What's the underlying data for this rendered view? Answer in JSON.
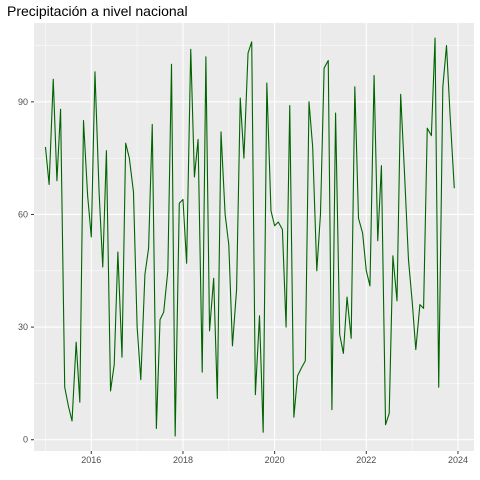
{
  "chart_data": {
    "type": "line",
    "title": "Precipitación a nivel nacional",
    "xlabel": "",
    "ylabel": "",
    "xlim": [
      2014.75,
      2024.35
    ],
    "ylim": [
      -3,
      111
    ],
    "x_ticks": [
      2016,
      2018,
      2020,
      2022,
      2024
    ],
    "y_ticks": [
      0,
      30,
      60,
      90
    ],
    "grid": true,
    "colors": {
      "line": "#006400",
      "panel": "#ebebeb",
      "grid": "#ffffff",
      "tick_text": "#4d4d4d"
    },
    "series": [
      {
        "x": [
          2015.0,
          2015.08,
          2015.17,
          2015.25,
          2015.33,
          2015.42,
          2015.5,
          2015.58,
          2015.67,
          2015.75,
          2015.83,
          2015.92,
          2016.0,
          2016.08,
          2016.17,
          2016.25,
          2016.33,
          2016.42,
          2016.5,
          2016.58,
          2016.67,
          2016.75,
          2016.83,
          2016.92,
          2017.0,
          2017.08,
          2017.17,
          2017.25,
          2017.33,
          2017.42,
          2017.5,
          2017.58,
          2017.67,
          2017.75,
          2017.83,
          2017.92,
          2018.0,
          2018.08,
          2018.17,
          2018.25,
          2018.33,
          2018.42,
          2018.5,
          2018.58,
          2018.67,
          2018.75,
          2018.83,
          2018.92,
          2019.0,
          2019.08,
          2019.17,
          2019.25,
          2019.33,
          2019.42,
          2019.5,
          2019.58,
          2019.67,
          2019.75,
          2019.83,
          2019.92,
          2020.0,
          2020.08,
          2020.17,
          2020.25,
          2020.33,
          2020.42,
          2020.5,
          2020.58,
          2020.67,
          2020.75,
          2020.83,
          2020.92,
          2021.0,
          2021.08,
          2021.17,
          2021.25,
          2021.33,
          2021.42,
          2021.5,
          2021.58,
          2021.67,
          2021.75,
          2021.83,
          2021.92,
          2022.0,
          2022.08,
          2022.17,
          2022.25,
          2022.33,
          2022.42,
          2022.5,
          2022.58,
          2022.67,
          2022.75,
          2022.83,
          2022.92,
          2023.0,
          2023.08,
          2023.17,
          2023.25,
          2023.33,
          2023.42,
          2023.5,
          2023.58,
          2023.67,
          2023.75,
          2023.83,
          2023.92
        ],
        "values": [
          78,
          68,
          96,
          69,
          88,
          14,
          9,
          5,
          26,
          10,
          85,
          65,
          54,
          98,
          66,
          46,
          77,
          13,
          20,
          50,
          22,
          79,
          75,
          66,
          30,
          16,
          44,
          51,
          84,
          3,
          32,
          34,
          45,
          100,
          1,
          63,
          64,
          47,
          104,
          70,
          80,
          18,
          102,
          29,
          43,
          11,
          82,
          60,
          52,
          25,
          40,
          91,
          75,
          103,
          106,
          12,
          33,
          2,
          95,
          61,
          57,
          58,
          56,
          30,
          89,
          6,
          17,
          19,
          21,
          90,
          78,
          45,
          60,
          99,
          101,
          8,
          87,
          28,
          23,
          38,
          27,
          94,
          59,
          55,
          45,
          41,
          97,
          53,
          73,
          4,
          7,
          49,
          37,
          92,
          72,
          48,
          37,
          24,
          36,
          35,
          83,
          81,
          107,
          14,
          94,
          105,
          86,
          67
        ]
      }
    ]
  }
}
